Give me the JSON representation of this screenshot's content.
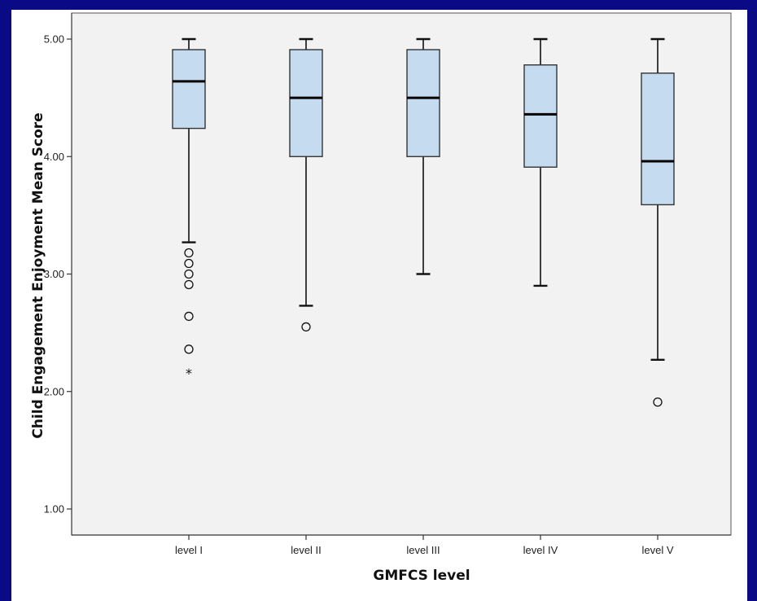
{
  "colors": {
    "background_border": "#0a0a86",
    "panel": "#f2f2f2",
    "box_fill": "#c5dcf0",
    "box_stroke": "#333333"
  },
  "chart_data": {
    "type": "boxplot",
    "title": "",
    "xlabel": "GMFCS level",
    "ylabel": "Child Engagement Enjoyment Mean Score",
    "ylim": [
      0.84,
      5.1
    ],
    "yticks": [
      "1.00",
      "2.00",
      "3.00",
      "4.00",
      "5.00"
    ],
    "ytick_values": [
      1,
      2,
      3,
      4,
      5
    ],
    "categories": [
      "level I",
      "level II",
      "level III",
      "level IV",
      "level V"
    ],
    "boxes": [
      {
        "category": "level I",
        "min": 3.27,
        "q1": 4.24,
        "median": 4.64,
        "q3": 4.91,
        "max": 5.0,
        "outliers": [
          3.18,
          3.09,
          3.0,
          2.91,
          2.64,
          2.36
        ],
        "extremes": [
          2.18
        ]
      },
      {
        "category": "level II",
        "min": 2.73,
        "q1": 4.0,
        "median": 4.5,
        "q3": 4.91,
        "max": 5.0,
        "outliers": [
          2.55
        ],
        "extremes": []
      },
      {
        "category": "level III",
        "min": 3.0,
        "q1": 4.0,
        "median": 4.5,
        "q3": 4.91,
        "max": 5.0,
        "outliers": [],
        "extremes": []
      },
      {
        "category": "level IV",
        "min": 2.9,
        "q1": 3.91,
        "median": 4.36,
        "q3": 4.78,
        "max": 5.0,
        "outliers": [],
        "extremes": []
      },
      {
        "category": "level V",
        "min": 2.27,
        "q1": 3.59,
        "median": 3.96,
        "q3": 4.71,
        "max": 5.0,
        "outliers": [
          1.91
        ],
        "extremes": []
      }
    ],
    "grid": false,
    "legend": "none"
  }
}
